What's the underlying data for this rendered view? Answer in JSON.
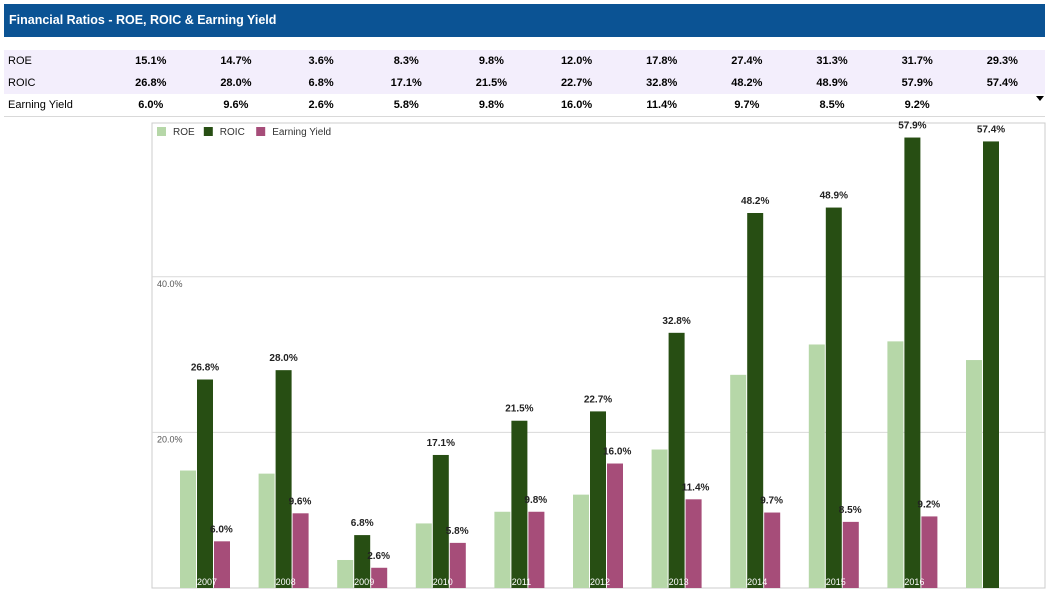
{
  "header": {
    "title": "Financial Ratios - ROE, ROIC & Earning Yield"
  },
  "table": {
    "rows": [
      {
        "label": "ROE",
        "values": [
          "15.1%",
          "14.7%",
          "3.6%",
          "8.3%",
          "9.8%",
          "12.0%",
          "17.8%",
          "27.4%",
          "31.3%",
          "31.7%",
          "29.3%"
        ]
      },
      {
        "label": "ROIC",
        "values": [
          "26.8%",
          "28.0%",
          "6.8%",
          "17.1%",
          "21.5%",
          "22.7%",
          "32.8%",
          "48.2%",
          "48.9%",
          "57.9%",
          "57.4%"
        ]
      },
      {
        "label": "Earning Yield",
        "values": [
          "6.0%",
          "9.6%",
          "2.6%",
          "5.8%",
          "9.8%",
          "16.0%",
          "11.4%",
          "9.7%",
          "8.5%",
          "9.2%",
          ""
        ]
      }
    ]
  },
  "chart_data": {
    "type": "bar",
    "categories": [
      "2007",
      "2008",
      "2009",
      "2010",
      "2011",
      "2012",
      "2013",
      "2014",
      "2015",
      "2016",
      ""
    ],
    "series": [
      {
        "name": "ROE",
        "color": "#b6d7a8",
        "values": [
          15.1,
          14.7,
          3.6,
          8.3,
          9.8,
          12.0,
          17.8,
          27.4,
          31.3,
          31.7,
          29.3
        ],
        "labeled": false
      },
      {
        "name": "ROIC",
        "color": "#274e13",
        "values": [
          26.8,
          28.0,
          6.8,
          17.1,
          21.5,
          22.7,
          32.8,
          48.2,
          48.9,
          57.9,
          57.4
        ],
        "labeled": true
      },
      {
        "name": "Earning Yield",
        "color": "#a64d79",
        "values": [
          6.0,
          9.6,
          2.6,
          5.8,
          9.8,
          16.0,
          11.4,
          9.7,
          8.5,
          9.2,
          null
        ],
        "labeled": true
      }
    ],
    "y_ticks": [
      {
        "value": 20,
        "label": "20.0%"
      },
      {
        "value": 40,
        "label": "40.0%"
      }
    ],
    "ylim": [
      0,
      60
    ],
    "grid": true,
    "legend": "top-left"
  }
}
